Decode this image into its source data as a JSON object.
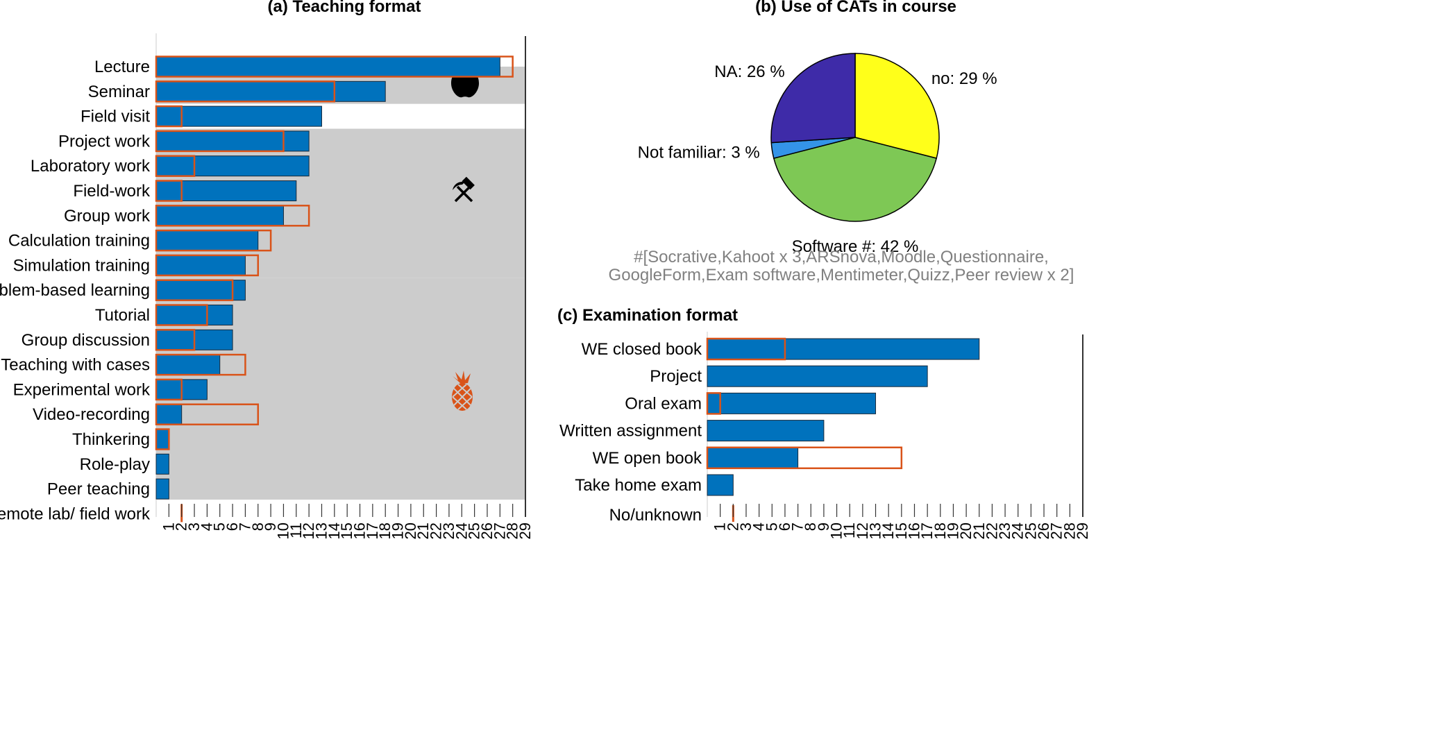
{
  "colors": {
    "bar_fill": "#0072BD",
    "bar_edge": "#1a2a3a",
    "outline_bar": "#D95319",
    "band": "#cccccc",
    "axis": "#333333",
    "note_text": "#808080"
  },
  "chart_data": [
    {
      "panel": "a",
      "type": "bar",
      "orientation": "horizontal",
      "title": "(a) Teaching format",
      "categories": [
        "Lecture",
        "Seminar",
        "Field visit",
        "Project work",
        "Laboratory work",
        "Field-work",
        "Group work",
        "Calculation training",
        "Simulation training",
        "Problem-based learning",
        "Tutorial",
        "Group discussion",
        "Teaching with cases",
        "Experimental work",
        "Video-recording",
        "Thinkering",
        "Role-play",
        "Peer teaching",
        "Remote lab/ field work"
      ],
      "series": [
        {
          "name": "blue",
          "style": "filled",
          "color": "#0072BD",
          "values": [
            27,
            18,
            13,
            12,
            12,
            11,
            10,
            8,
            7,
            7,
            6,
            6,
            5,
            4,
            2,
            1,
            1,
            1,
            0
          ]
        },
        {
          "name": "orange",
          "style": "outline",
          "color": "#D95319",
          "values": [
            28,
            14,
            2,
            10,
            3,
            2,
            12,
            9,
            8,
            6,
            4,
            3,
            7,
            2,
            8,
            1,
            0,
            0,
            2
          ]
        }
      ],
      "xlim": [
        0,
        29
      ],
      "xticks": [
        1,
        2,
        3,
        4,
        5,
        6,
        7,
        8,
        9,
        10,
        11,
        12,
        13,
        14,
        15,
        16,
        17,
        18,
        19,
        20,
        21,
        22,
        23,
        24,
        25,
        26,
        27,
        28,
        29
      ],
      "grey_groups": [
        {
          "from": "Seminar",
          "to": "Seminar",
          "icon": "apple-icon"
        },
        {
          "from": "Project work",
          "to": "Simulation training",
          "icon": "hammer-pick-icon"
        },
        {
          "from": "Problem-based learning",
          "to": "Peer teaching",
          "icon": "pineapple-icon"
        }
      ]
    },
    {
      "panel": "b",
      "type": "pie",
      "title": "(b) Use of CATs in course",
      "slices": [
        {
          "label": "no",
          "value": 29,
          "text": "no: 29 %",
          "color": "#FFFF1A"
        },
        {
          "label": "Software #",
          "value": 42,
          "text": "Software #: 42 %",
          "color": "#7EC855"
        },
        {
          "label": "Not familiar",
          "value": 3,
          "text": "Not familiar: 3 %",
          "color": "#3494E8"
        },
        {
          "label": "NA",
          "value": 26,
          "text": "NA: 26 %",
          "color": "#3E2BA8"
        }
      ],
      "note_lines": [
        "#[Socrative,Kahoot x 3,ARSnova,Moodle,Questionnaire,",
        "GoogleForm,Exam software,Mentimeter,Quizz,Peer review x 2]"
      ]
    },
    {
      "panel": "c",
      "type": "bar",
      "orientation": "horizontal",
      "title": "(c) Examination format",
      "categories": [
        "WE closed book",
        "Project",
        "Oral exam",
        "Written assignment",
        "WE open book",
        "Take home exam",
        "No/unknown"
      ],
      "series": [
        {
          "name": "blue",
          "style": "filled",
          "color": "#0072BD",
          "values": [
            21,
            17,
            13,
            9,
            7,
            2,
            0
          ]
        },
        {
          "name": "orange",
          "style": "outline",
          "color": "#D95319",
          "values": [
            6,
            0,
            1,
            0,
            15,
            0,
            2
          ]
        }
      ],
      "xlim": [
        0,
        29
      ],
      "xticks": [
        1,
        2,
        3,
        4,
        5,
        6,
        7,
        8,
        9,
        10,
        11,
        12,
        13,
        14,
        15,
        16,
        17,
        18,
        19,
        20,
        21,
        22,
        23,
        24,
        25,
        26,
        27,
        28,
        29
      ]
    }
  ]
}
